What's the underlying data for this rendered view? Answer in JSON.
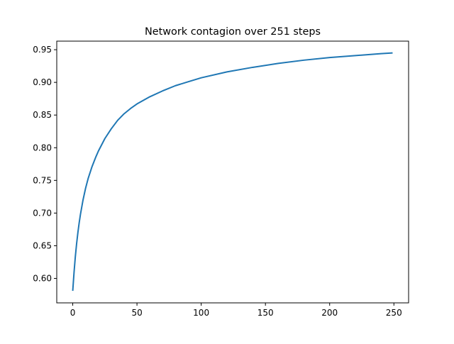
{
  "chart_data": {
    "type": "line",
    "title": "Network contagion over 251 steps",
    "xlabel": "",
    "ylabel": "",
    "xlim": [
      -12.45,
      261.45
    ],
    "ylim": [
      0.5626,
      0.9631
    ],
    "xticks": [
      0,
      50,
      100,
      150,
      200,
      250
    ],
    "yticks": [
      0.6,
      0.65,
      0.7,
      0.75,
      0.8,
      0.85,
      0.9,
      0.95
    ],
    "ytick_labels": [
      "0.60",
      "0.65",
      "0.70",
      "0.75",
      "0.80",
      "0.85",
      "0.90",
      "0.95"
    ],
    "grid": false,
    "series": [
      {
        "color": "#1f77b4",
        "x": [
          0,
          1,
          2,
          3,
          4,
          5,
          6,
          8,
          10,
          12,
          15,
          18,
          20,
          25,
          30,
          35,
          40,
          45,
          50,
          60,
          70,
          80,
          90,
          100,
          120,
          140,
          160,
          180,
          200,
          220,
          240,
          249
        ],
        "y": [
          0.581,
          0.609,
          0.633,
          0.653,
          0.67,
          0.685,
          0.698,
          0.72,
          0.738,
          0.753,
          0.771,
          0.786,
          0.795,
          0.814,
          0.829,
          0.842,
          0.852,
          0.86,
          0.867,
          0.878,
          0.887,
          0.895,
          0.901,
          0.907,
          0.916,
          0.923,
          0.929,
          0.934,
          0.938,
          0.941,
          0.944,
          0.945
        ]
      }
    ]
  }
}
